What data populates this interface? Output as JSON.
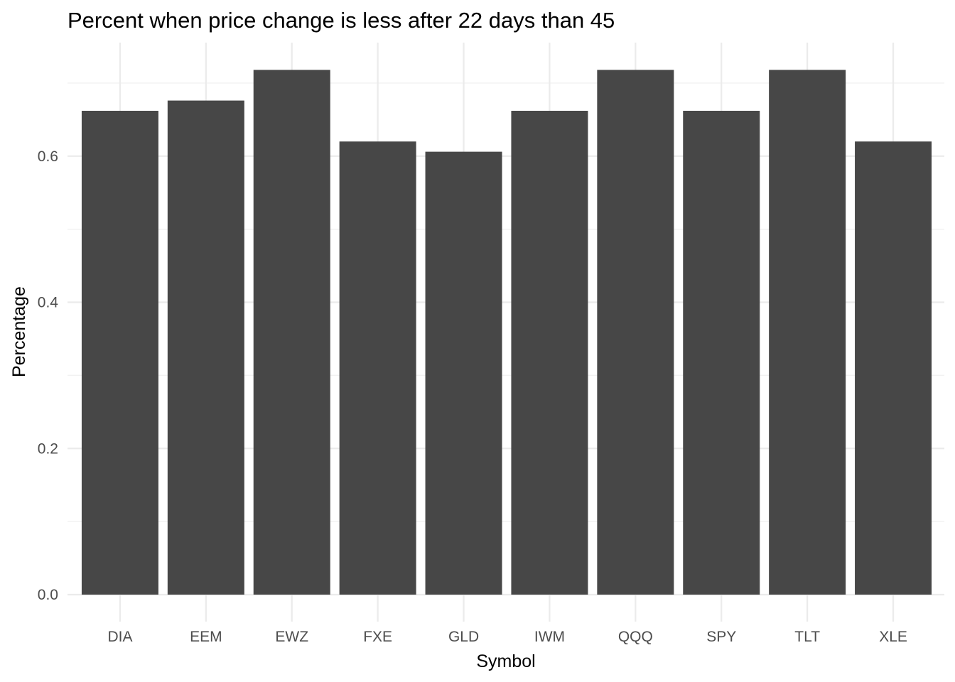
{
  "chart_data": {
    "type": "bar",
    "title": "Percent when price change is less after 22 days than 45",
    "xlabel": "Symbol",
    "ylabel": "Percentage",
    "categories": [
      "DIA",
      "EEM",
      "EWZ",
      "FXE",
      "GLD",
      "IWM",
      "QQQ",
      "SPY",
      "TLT",
      "XLE"
    ],
    "values": [
      0.662,
      0.676,
      0.718,
      0.62,
      0.606,
      0.662,
      0.718,
      0.662,
      0.718,
      0.62
    ],
    "ylim": [
      0,
      0.75
    ],
    "yticks": [
      0.0,
      0.2,
      0.4,
      0.6
    ],
    "ytick_labels": [
      "0.0",
      "0.2",
      "0.4",
      "0.6"
    ],
    "grid": true,
    "legend": "none",
    "bar_color": "#474747",
    "grid_color": "#ebebeb"
  }
}
